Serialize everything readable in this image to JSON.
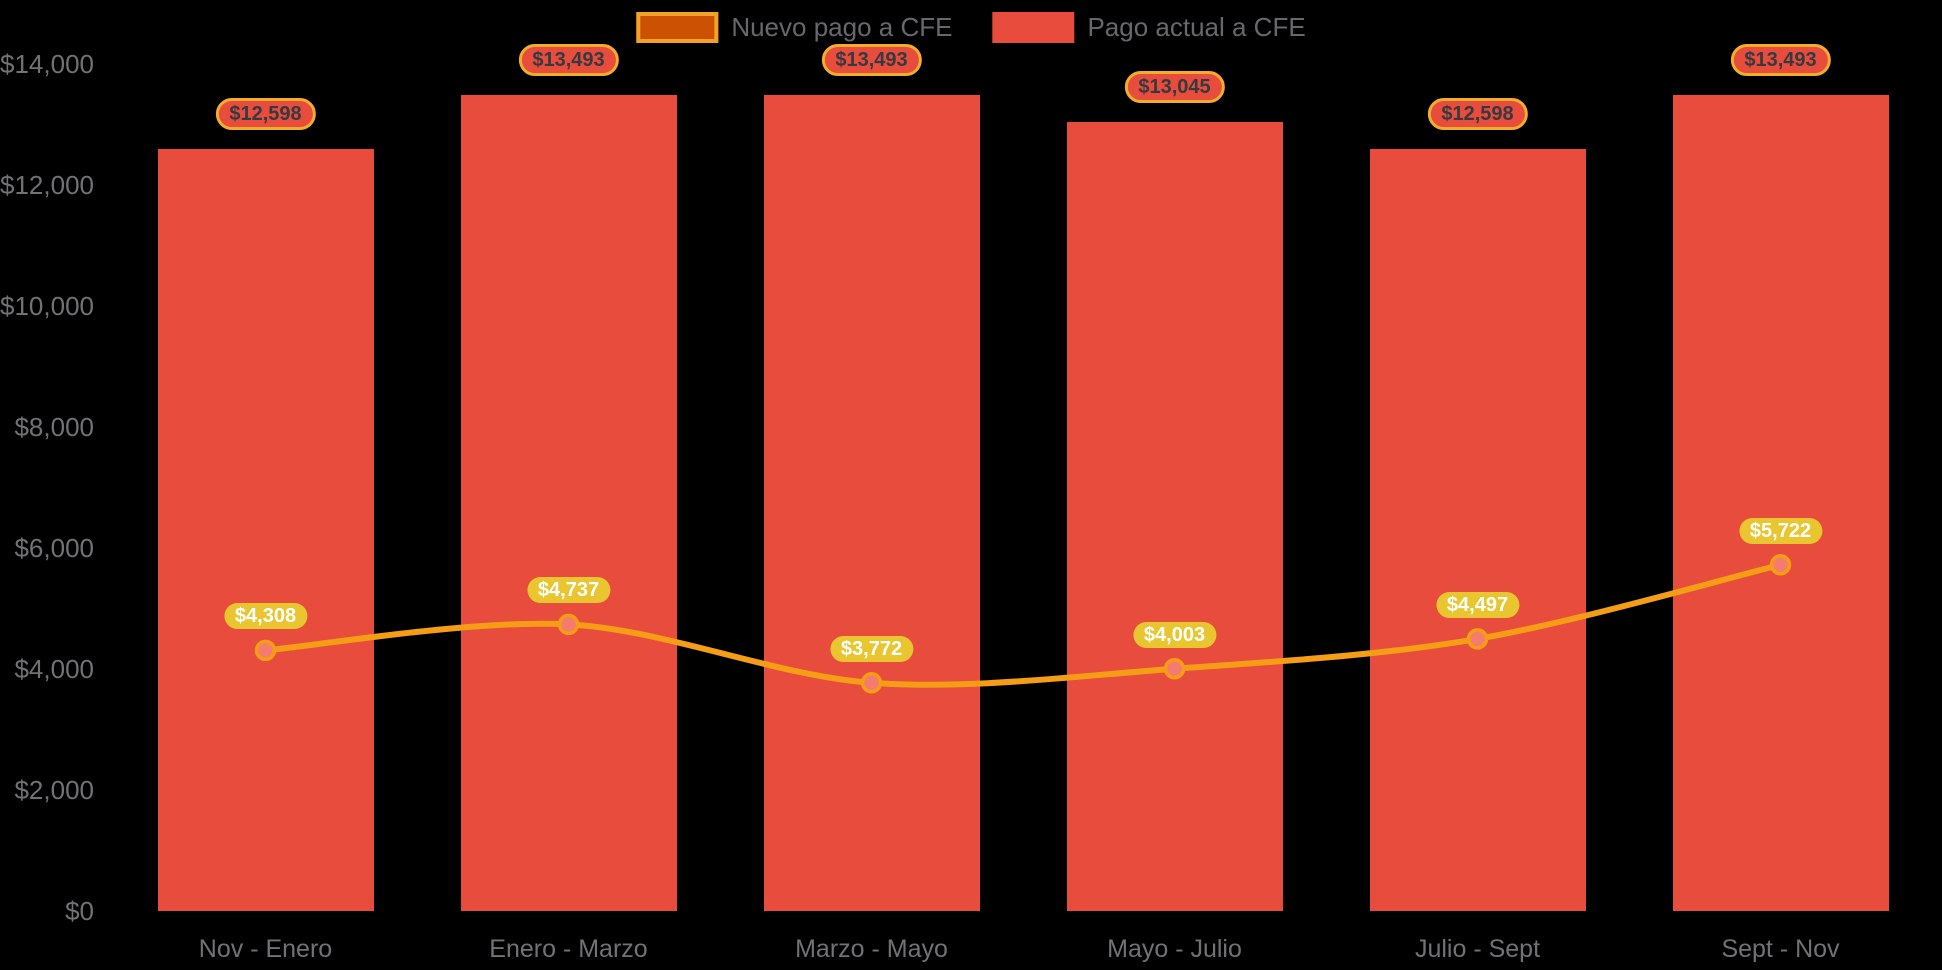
{
  "colors": {
    "background": "#000000",
    "bar": "#e74c3c",
    "line": "#f49d15",
    "legend_line_fill": "#cc5103",
    "legend_line_border": "#f2a129",
    "point_fill": "#f57b6e",
    "point_border": "#f49d15",
    "badge_yellow_fill": "#e9c52f",
    "badge_border_yellow": "#f2ae2a",
    "badge_dark_text": "#343a40",
    "badge_light_text": "#ffffff",
    "axis_text": "#707274",
    "legend_text": "#66686b"
  },
  "legend": {
    "items": [
      {
        "label": "Nuevo pago a CFE",
        "series": "line"
      },
      {
        "label": "Pago actual a CFE",
        "series": "bar"
      }
    ]
  },
  "chart_data": {
    "type": "bar",
    "subtype": "combo-bar-line",
    "title": "",
    "xlabel": "",
    "ylabel": "",
    "grid": false,
    "legend_position": "top-center",
    "ylim": [
      0,
      14000
    ],
    "categories": [
      "Nov - Enero",
      "Enero - Marzo",
      "Marzo - Mayo",
      "Mayo - Julio",
      "Julio - Sept",
      "Sept - Nov"
    ],
    "series": [
      {
        "name": "Pago actual a CFE",
        "type": "bar",
        "values": [
          12598,
          13493,
          13493,
          13045,
          12598,
          13493
        ],
        "data_labels": [
          "$12,598",
          "$13,493",
          "$13,493",
          "$13,045",
          "$12,598",
          "$13,493"
        ]
      },
      {
        "name": "Nuevo pago a CFE",
        "type": "line",
        "values": [
          4308,
          4737,
          3772,
          4003,
          4497,
          5722
        ],
        "data_labels": [
          "$4,308",
          "$4,737",
          "$3,772",
          "$4,003",
          "$4,497",
          "$5,722"
        ]
      }
    ],
    "y_ticks": [
      {
        "value": 0,
        "label": "$0"
      },
      {
        "value": 2000,
        "label": "$2,000"
      },
      {
        "value": 4000,
        "label": "$4,000"
      },
      {
        "value": 6000,
        "label": "$6,000"
      },
      {
        "value": 8000,
        "label": "$8,000"
      },
      {
        "value": 10000,
        "label": "$10,000"
      },
      {
        "value": 12000,
        "label": "$12,000"
      },
      {
        "value": 14000,
        "label": "$14,000"
      }
    ]
  }
}
